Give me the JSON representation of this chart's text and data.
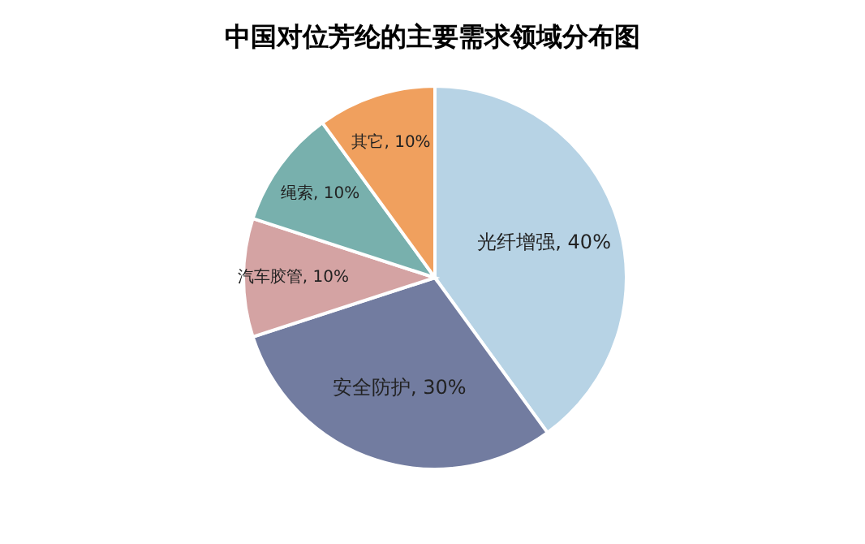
{
  "chart_data": {
    "type": "pie",
    "title": "中国对位芳纶的主要需求领域分布图",
    "categories": [
      "光纤增强",
      "安全防护",
      "汽车胶管",
      "绳索",
      "其它"
    ],
    "values": [
      40,
      30,
      10,
      10,
      10
    ],
    "value_labels": [
      "40%",
      "30%",
      "10%",
      "10%",
      "10%"
    ],
    "colors": [
      "#b7d3e5",
      "#727ca0",
      "#d4a3a3",
      "#78b0ad",
      "#f0a05e"
    ],
    "legend": false
  }
}
